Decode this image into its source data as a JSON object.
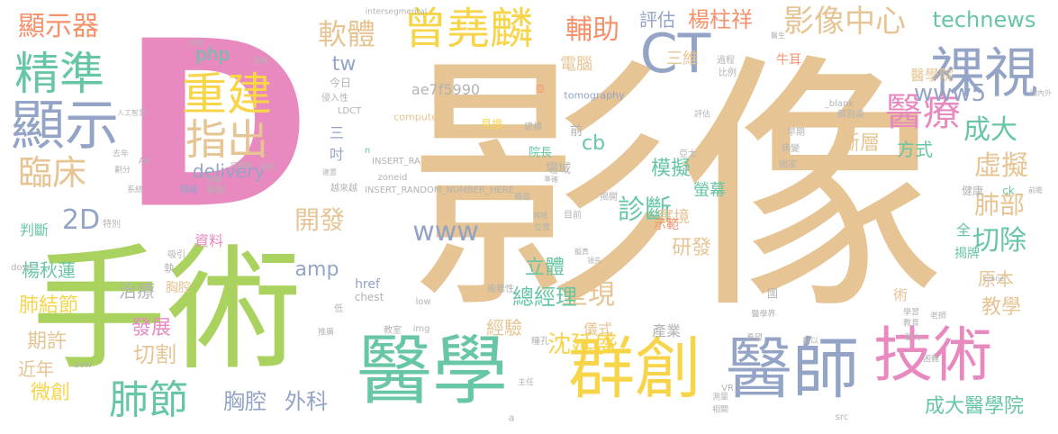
{
  "palette": {
    "tan": "#e6c493",
    "green": "#a9d25f",
    "yellow": "#f7d448",
    "pink": "#e889bf",
    "blue": "#93a4c6",
    "teal": "#67c6a3",
    "orange": "#f5916b",
    "gray": "#b3b3b3",
    "background": "#ffffff"
  },
  "words": [
    "影像",
    "D",
    "手術",
    "醫學",
    "群創",
    "醫師",
    "技術",
    "裸視",
    "曾堯麟",
    "CT",
    "影像中心",
    "重建",
    "指出",
    "精準",
    "顯示",
    "醫療",
    "肺節",
    "臨床",
    "顯示器",
    "軟體",
    "輔助",
    "評估",
    "楊柱祥",
    "technews",
    "成大",
    "虛擬",
    "肺部",
    "切除",
    "診斷",
    "2D",
    "開發",
    "呈現",
    "總經理",
    "模擬",
    "斷層",
    "方式",
    "成大醫學院",
    "胸腔",
    "外科",
    "切割",
    "期許",
    "近年",
    "微創",
    "發展",
    "肺結節",
    "楊秋蓮",
    "治療",
    "沈延盛",
    "教學",
    "原本",
    "立體",
    "研發",
    "經驗",
    "www",
    "www5",
    "delivery",
    "tw",
    "php",
    "amp",
    "cb",
    "實境",
    "螢幕",
    "三維",
    "電腦",
    "判斷",
    "資料",
    "儀式",
    "產業",
    "揭牌",
    "全",
    "ae7f5990",
    "computed",
    "tomography",
    "INSERT_RA",
    "zoneid",
    "INSERT_RANDOM_NUMBER_HERE",
    "href",
    "chest",
    "low",
    "img",
    "_blank",
    "LDCT",
    "intersegmental",
    "dose",
    "AR",
    "src",
    "VR",
    "plane",
    "avw",
    "a",
    "醫學院",
    "牛耳",
    "比例",
    "過程",
    "解剖桌",
    "國內外",
    "早期",
    "病變",
    "國家",
    "健康",
    "ck",
    "前瞻",
    "示範",
    "見證",
    "建構",
    "院長",
    "場域",
    "吋",
    "三",
    "前",
    "侵入性",
    "今日",
    "人工智慧",
    "觀摩",
    "同意",
    "建議",
    "建置",
    "去年",
    "劃分",
    "系統",
    "複雜性",
    "精確",
    "解剖",
    "越來越",
    "特別",
    "吸引",
    "胸腔",
    "瞳孔",
    "教室",
    "推廣",
    "學習",
    "老師",
    "教育",
    "主任",
    "希望",
    "相關",
    "測量",
    "困難",
    "醫學界",
    "國",
    "術",
    "劃以",
    "致力",
    "低",
    "執",
    "位置",
    "亞太",
    "構造",
    "揭開",
    "評估",
    "醫生",
    "亞",
    "n",
    "目前",
    "跨域",
    "準確",
    "空間感",
    "研究",
    "擬真",
    "領先"
  ]
}
